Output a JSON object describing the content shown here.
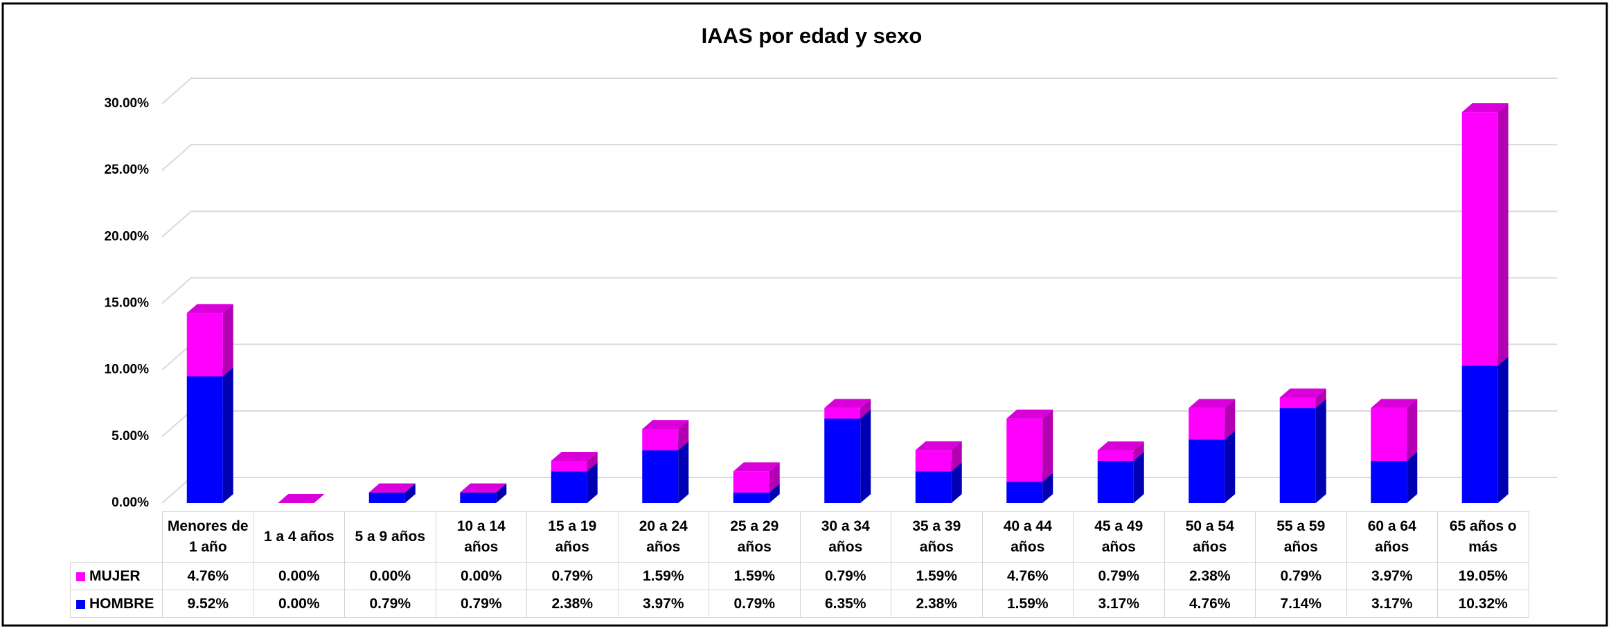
{
  "chart_data": {
    "type": "bar",
    "stacked": true,
    "title": "IAAS por edad y sexo",
    "categories": [
      "Menores de 1 año",
      "1 a 4 años",
      "5 a 9 años",
      "10 a 14 años",
      "15 a 19 años",
      "20 a 24 años",
      "25 a 29 años",
      "30 a 34 años",
      "35 a 39 años",
      "40 a 44 años",
      "45 a 49 años",
      "50 a 54 años",
      "55 a 59 años",
      "60 a 64 años",
      "65 años o más"
    ],
    "series": [
      {
        "name": "MUJER",
        "color": "#ff00ff",
        "stack_order": 1,
        "values": [
          4.76,
          0,
          0,
          0,
          0.79,
          1.59,
          1.59,
          0.79,
          1.59,
          4.76,
          0.79,
          2.38,
          0.79,
          3.97,
          19.05
        ],
        "value_labels": [
          "4.76%",
          "0.00%",
          "0.00%",
          "0.00%",
          "0.79%",
          "1.59%",
          "1.59%",
          "0.79%",
          "1.59%",
          "4.76%",
          "0.79%",
          "2.38%",
          "0.79%",
          "3.97%",
          "19.05%"
        ]
      },
      {
        "name": "HOMBRE",
        "color": "#0000ff",
        "stack_order": 0,
        "values": [
          9.52,
          0,
          0.79,
          0.79,
          2.38,
          3.97,
          0.79,
          6.35,
          2.38,
          1.59,
          3.17,
          4.76,
          7.14,
          3.17,
          10.32
        ],
        "value_labels": [
          "9.52%",
          "0.00%",
          "0.79%",
          "0.79%",
          "2.38%",
          "3.97%",
          "0.79%",
          "6.35%",
          "2.38%",
          "1.59%",
          "3.17%",
          "4.76%",
          "7.14%",
          "3.17%",
          "10.32%"
        ]
      }
    ],
    "ylim": [
      0,
      30
    ],
    "yticks": [
      {
        "value": 0,
        "label": "0.00%"
      },
      {
        "value": 5,
        "label": "5.00%"
      },
      {
        "value": 10,
        "label": "10.00%"
      },
      {
        "value": 15,
        "label": "15.00%"
      },
      {
        "value": 20,
        "label": "20.00%"
      },
      {
        "value": 25,
        "label": "25.00%"
      },
      {
        "value": 30,
        "label": "30.00%"
      }
    ],
    "grid": true,
    "data_table": true
  }
}
